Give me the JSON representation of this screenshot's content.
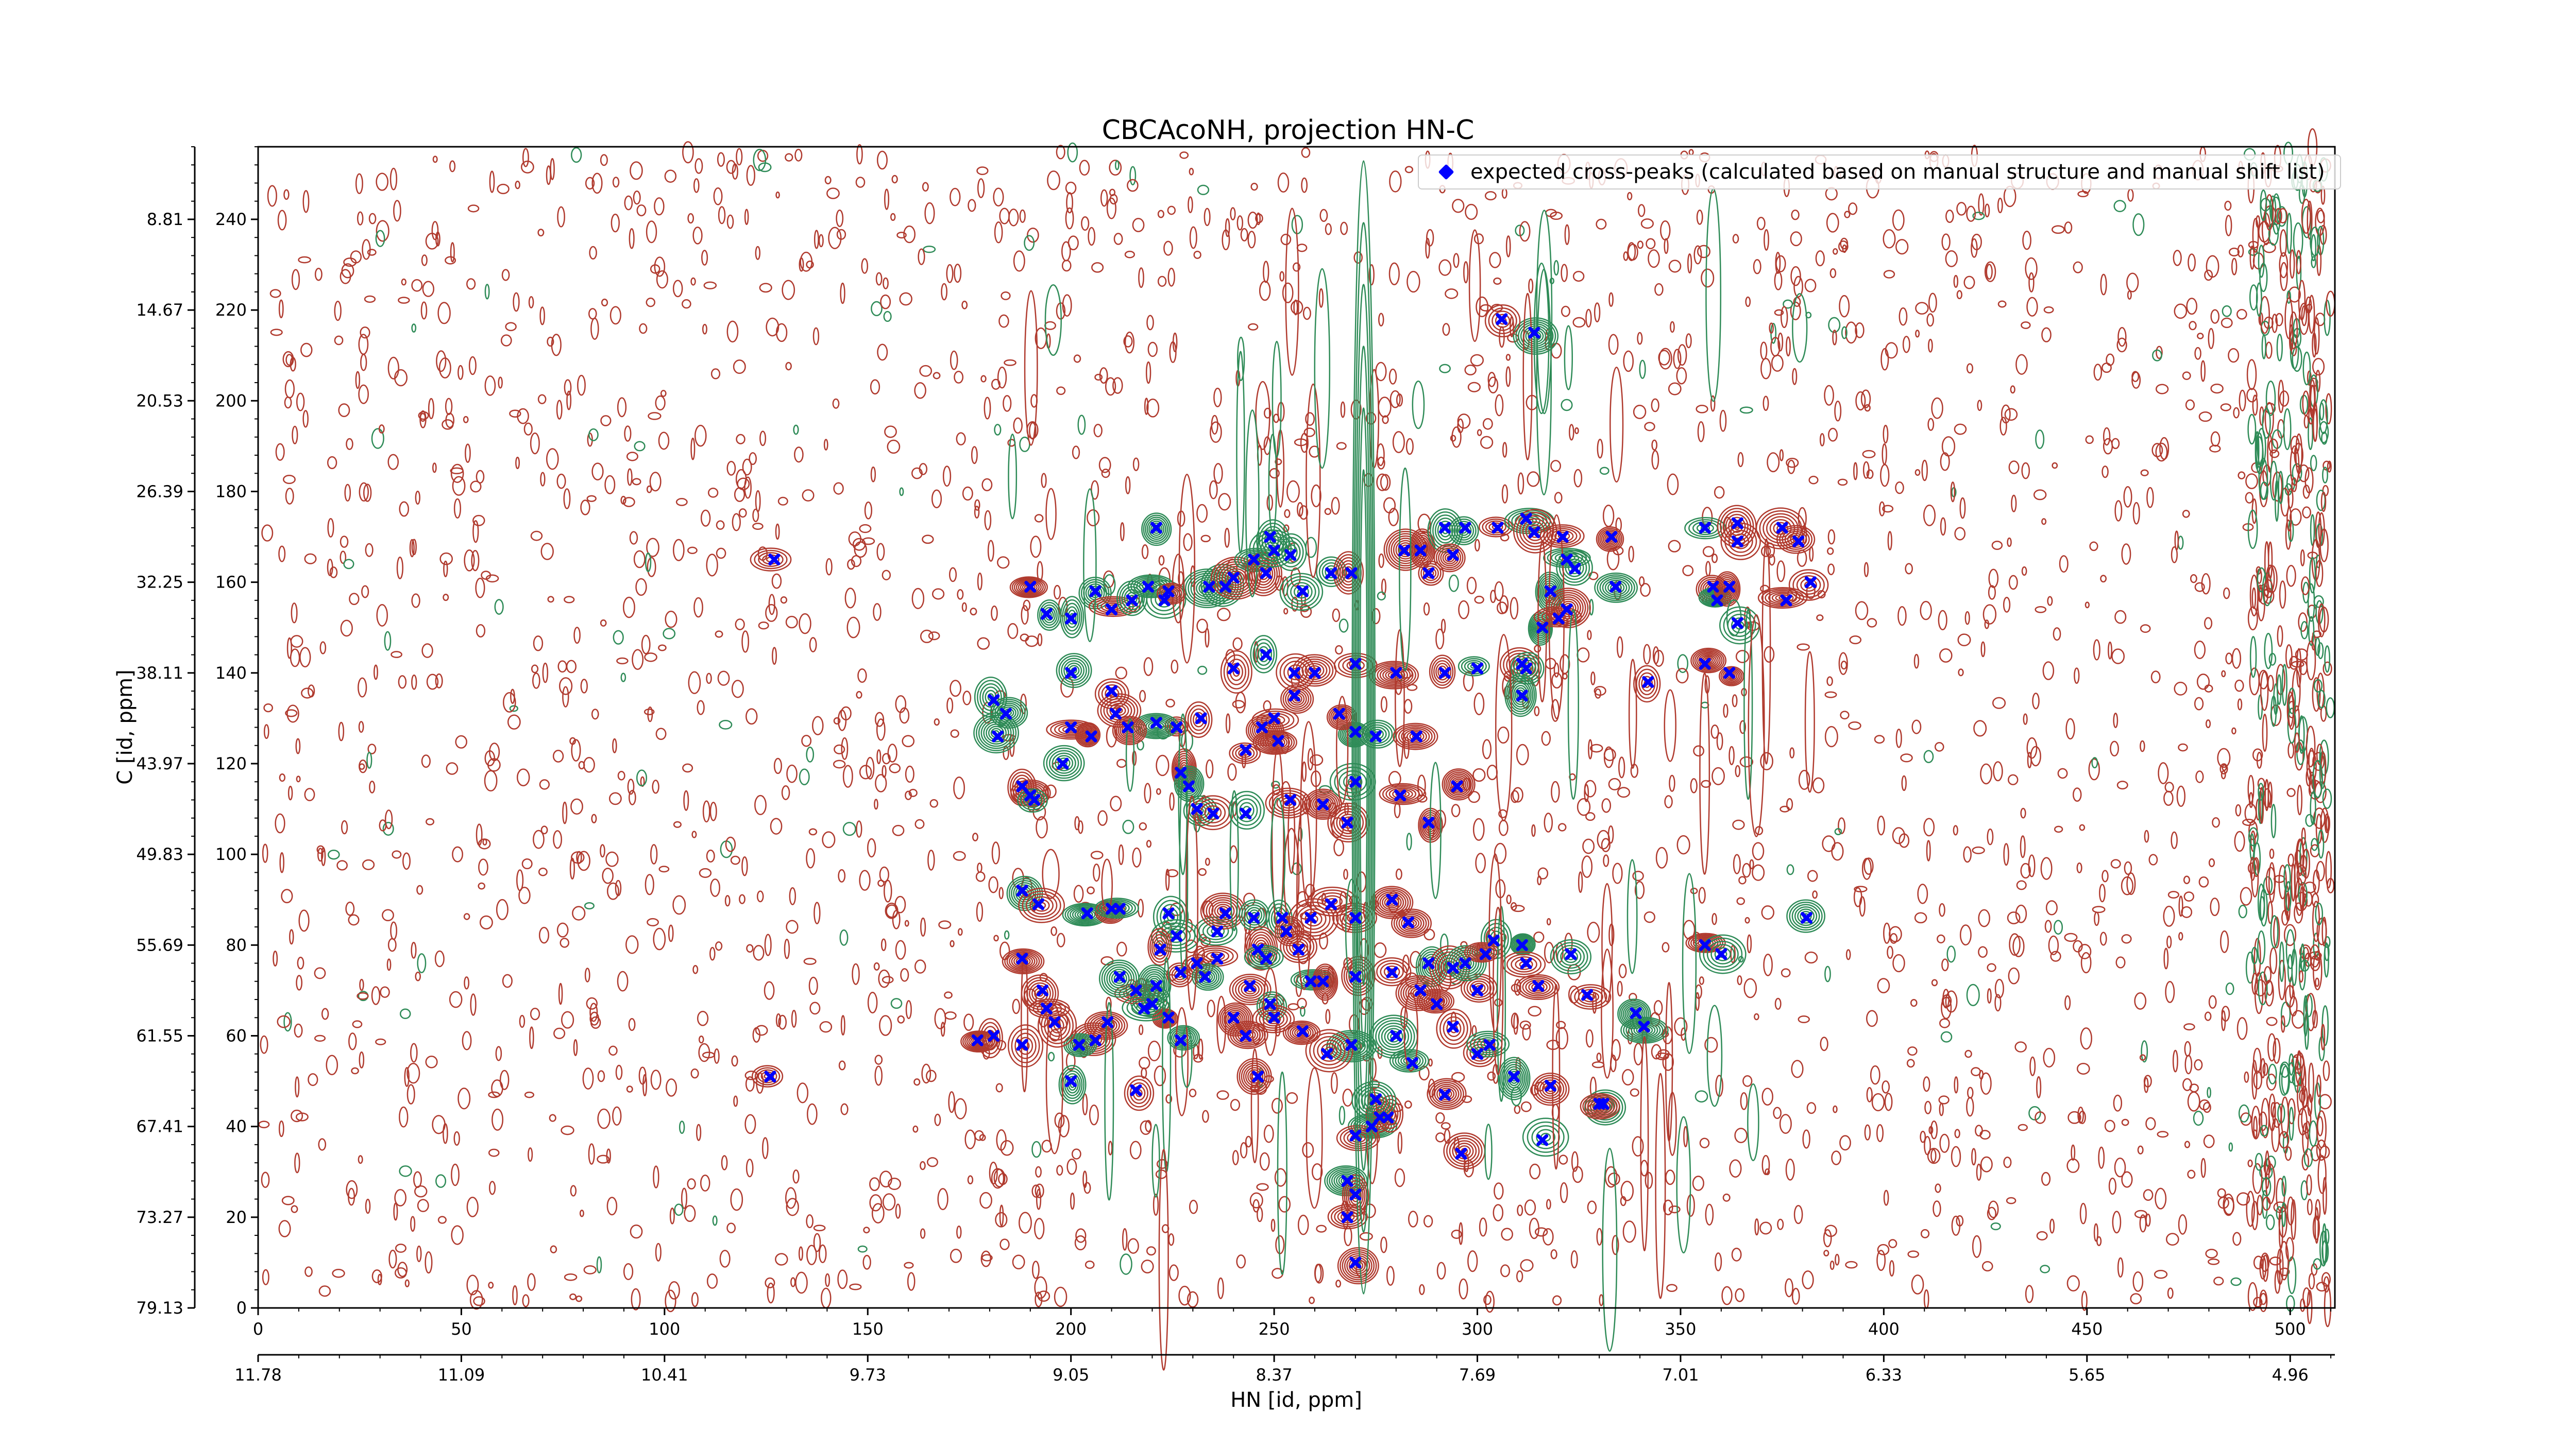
{
  "chart_data": {
    "type": "scatter",
    "title": "CBCAcoNH, projection HN-C",
    "xlabel": "HN [id, ppm]",
    "ylabel": "C [id, ppm]",
    "x_range": [
      0,
      511
    ],
    "y_range": [
      0,
      256
    ],
    "x_ticks": [
      0,
      50,
      100,
      150,
      200,
      250,
      300,
      350,
      400,
      450,
      500
    ],
    "y_ticks": [
      0,
      20,
      40,
      60,
      80,
      100,
      120,
      140,
      160,
      180,
      200,
      220,
      240
    ],
    "x_ppm_ticks": [
      "11.78",
      "11.09",
      "10.41",
      "9.73",
      "9.05",
      "8.37",
      "7.69",
      "7.01",
      "6.33",
      "5.65",
      "4.96"
    ],
    "y_ppm_ticks": [
      "79.13",
      "73.27",
      "67.41",
      "61.55",
      "55.69",
      "49.83",
      "43.97",
      "38.11",
      "32.25",
      "26.39",
      "20.53",
      "14.67",
      "8.81"
    ],
    "legend_position": "upper right",
    "series": [
      {
        "name": "expected cross-peaks (calculated based on manual structure and manual shift list)",
        "color": "#0000ff",
        "marker": "x",
        "points": [
          [
            127,
            165
          ],
          [
            190,
            159
          ],
          [
            194,
            153
          ],
          [
            200,
            152
          ],
          [
            206,
            158
          ],
          [
            210,
            154
          ],
          [
            215,
            156
          ],
          [
            219,
            159
          ],
          [
            223,
            156
          ],
          [
            224,
            158
          ],
          [
            221,
            172
          ],
          [
            234,
            159
          ],
          [
            238,
            159
          ],
          [
            240,
            161
          ],
          [
            245,
            165
          ],
          [
            248,
            162
          ],
          [
            249,
            170
          ],
          [
            250,
            167
          ],
          [
            254,
            166
          ],
          [
            257,
            158
          ],
          [
            264,
            162
          ],
          [
            269,
            162
          ],
          [
            282,
            167
          ],
          [
            286,
            167
          ],
          [
            288,
            162
          ],
          [
            292,
            172
          ],
          [
            294,
            166
          ],
          [
            297,
            172
          ],
          [
            305,
            172
          ],
          [
            312,
            174
          ],
          [
            314,
            171
          ],
          [
            321,
            170
          ],
          [
            322,
            165
          ],
          [
            318,
            158
          ],
          [
            316,
            150
          ],
          [
            320,
            152
          ],
          [
            322,
            154
          ],
          [
            324,
            163
          ],
          [
            333,
            170
          ],
          [
            334,
            159
          ],
          [
            356,
            172
          ],
          [
            358,
            159
          ],
          [
            359,
            156
          ],
          [
            364,
            173
          ],
          [
            364,
            169
          ],
          [
            362,
            159
          ],
          [
            364,
            151
          ],
          [
            375,
            172
          ],
          [
            379,
            169
          ],
          [
            376,
            156
          ],
          [
            382,
            160
          ],
          [
            356,
            142
          ],
          [
            362,
            140
          ],
          [
            342,
            138
          ],
          [
            311,
            142
          ],
          [
            311,
            135
          ],
          [
            312,
            141
          ],
          [
            300,
            141
          ],
          [
            292,
            140
          ],
          [
            280,
            140
          ],
          [
            270,
            142
          ],
          [
            260,
            140
          ],
          [
            255,
            140
          ],
          [
            255,
            135
          ],
          [
            248,
            144
          ],
          [
            240,
            141
          ],
          [
            247,
            128
          ],
          [
            250,
            130
          ],
          [
            232,
            130
          ],
          [
            226,
            128
          ],
          [
            221,
            129
          ],
          [
            214,
            128
          ],
          [
            210,
            136
          ],
          [
            211,
            131
          ],
          [
            200,
            140
          ],
          [
            200,
            128
          ],
          [
            205,
            126
          ],
          [
            198,
            120
          ],
          [
            184,
            131
          ],
          [
            181,
            134
          ],
          [
            182,
            126
          ],
          [
            188,
            115
          ],
          [
            190,
            113
          ],
          [
            191,
            112
          ],
          [
            227,
            118
          ],
          [
            229,
            115
          ],
          [
            231,
            110
          ],
          [
            235,
            109
          ],
          [
            243,
            109
          ],
          [
            254,
            112
          ],
          [
            262,
            111
          ],
          [
            268,
            107
          ],
          [
            270,
            116
          ],
          [
            281,
            113
          ],
          [
            288,
            107
          ],
          [
            295,
            115
          ],
          [
            270,
            127
          ],
          [
            275,
            126
          ],
          [
            285,
            126
          ],
          [
            266,
            131
          ],
          [
            251,
            125
          ],
          [
            243,
            123
          ],
          [
            188,
            92
          ],
          [
            192,
            89
          ],
          [
            188,
            77
          ],
          [
            193,
            70
          ],
          [
            194,
            66
          ],
          [
            204,
            87
          ],
          [
            210,
            88
          ],
          [
            212,
            88
          ],
          [
            224,
            87
          ],
          [
            226,
            82
          ],
          [
            236,
            83
          ],
          [
            238,
            87
          ],
          [
            245,
            86
          ],
          [
            252,
            86
          ],
          [
            253,
            83
          ],
          [
            259,
            86
          ],
          [
            264,
            89
          ],
          [
            270,
            86
          ],
          [
            279,
            90
          ],
          [
            283,
            85
          ],
          [
            288,
            76
          ],
          [
            294,
            75
          ],
          [
            300,
            70
          ],
          [
            311,
            80
          ],
          [
            312,
            76
          ],
          [
            315,
            71
          ],
          [
            323,
            78
          ],
          [
            327,
            69
          ],
          [
            339,
            65
          ],
          [
            297,
            76
          ],
          [
            304,
            81
          ],
          [
            302,
            78
          ],
          [
            256,
            79
          ],
          [
            246,
            79
          ],
          [
            248,
            77
          ],
          [
            236,
            77
          ],
          [
            231,
            76
          ],
          [
            222,
            79
          ],
          [
            220,
            67
          ],
          [
            216,
            70
          ],
          [
            212,
            73
          ],
          [
            221,
            71
          ],
          [
            227,
            74
          ],
          [
            233,
            73
          ],
          [
            244,
            71
          ],
          [
            249,
            67
          ],
          [
            259,
            72
          ],
          [
            262,
            72
          ],
          [
            270,
            73
          ],
          [
            279,
            74
          ],
          [
            286,
            70
          ],
          [
            290,
            67
          ],
          [
            294,
            62
          ],
          [
            300,
            56
          ],
          [
            303,
            58
          ],
          [
            309,
            51
          ],
          [
            318,
            49
          ],
          [
            331,
            45
          ],
          [
            330,
            45
          ],
          [
            280,
            60
          ],
          [
            269,
            58
          ],
          [
            263,
            56
          ],
          [
            257,
            61
          ],
          [
            250,
            64
          ],
          [
            243,
            60
          ],
          [
            240,
            64
          ],
          [
            227,
            59
          ],
          [
            224,
            64
          ],
          [
            218,
            66
          ],
          [
            209,
            63
          ],
          [
            206,
            59
          ],
          [
            202,
            58
          ],
          [
            196,
            63
          ],
          [
            188,
            58
          ],
          [
            181,
            60
          ],
          [
            177,
            59
          ],
          [
            126,
            51
          ],
          [
            200,
            50
          ],
          [
            216,
            48
          ],
          [
            246,
            51
          ],
          [
            274,
            40
          ],
          [
            276,
            42
          ],
          [
            284,
            54
          ],
          [
            292,
            47
          ],
          [
            278,
            42
          ],
          [
            296,
            34
          ],
          [
            316,
            37
          ],
          [
            341,
            62
          ],
          [
            381,
            86
          ],
          [
            356,
            80
          ],
          [
            360,
            78
          ],
          [
            270,
            38
          ],
          [
            268,
            28
          ],
          [
            270,
            25
          ],
          [
            268,
            20
          ],
          [
            270,
            10
          ],
          [
            275,
            46
          ],
          [
            314,
            215
          ],
          [
            306,
            218
          ]
        ]
      }
    ],
    "contours": {
      "positive_color": "#b03a2e",
      "negative_color": "#2e8b57"
    }
  }
}
